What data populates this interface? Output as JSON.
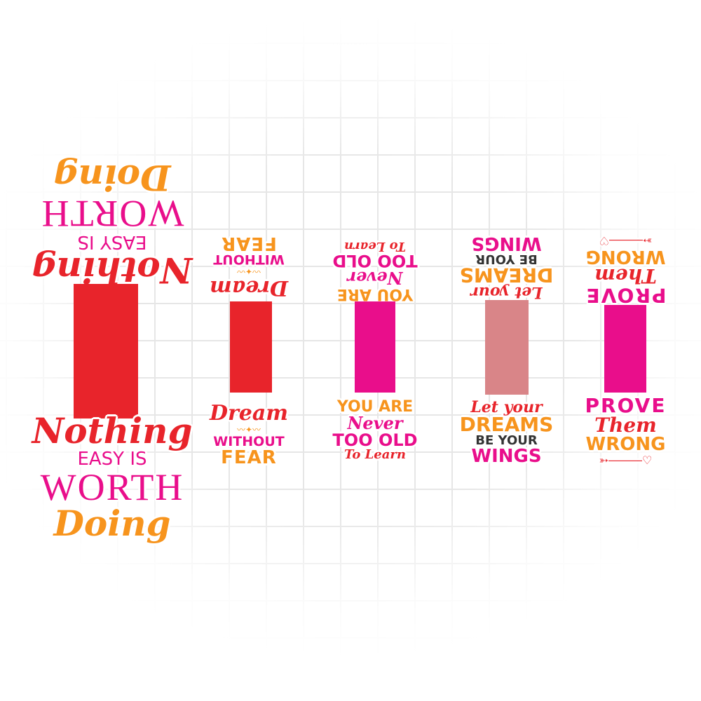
{
  "colors": {
    "red": "#e8242b",
    "pink": "#e90e8b",
    "orange": "#f7941d",
    "dusty_rose": "#d98588"
  },
  "stickers": [
    {
      "lines": [
        "Nothing",
        "EASY IS",
        "WORTH",
        "Doing"
      ],
      "bar_color": "#e8242b"
    },
    {
      "lines": [
        "Dream",
        "WITHOUT",
        "FEAR"
      ],
      "bar_color": "#e8242b"
    },
    {
      "lines": [
        "YOU ARE",
        "Never",
        "TOO OLD",
        "To Learn"
      ],
      "bar_color": "#e90e8b"
    },
    {
      "lines": [
        "Let your",
        "DREAMS",
        "BE YOUR",
        "WINGS"
      ],
      "bar_color": "#d98588"
    },
    {
      "lines": [
        "PROVE",
        "Them",
        "WRONG"
      ],
      "bar_color": "#e90e8b"
    }
  ]
}
